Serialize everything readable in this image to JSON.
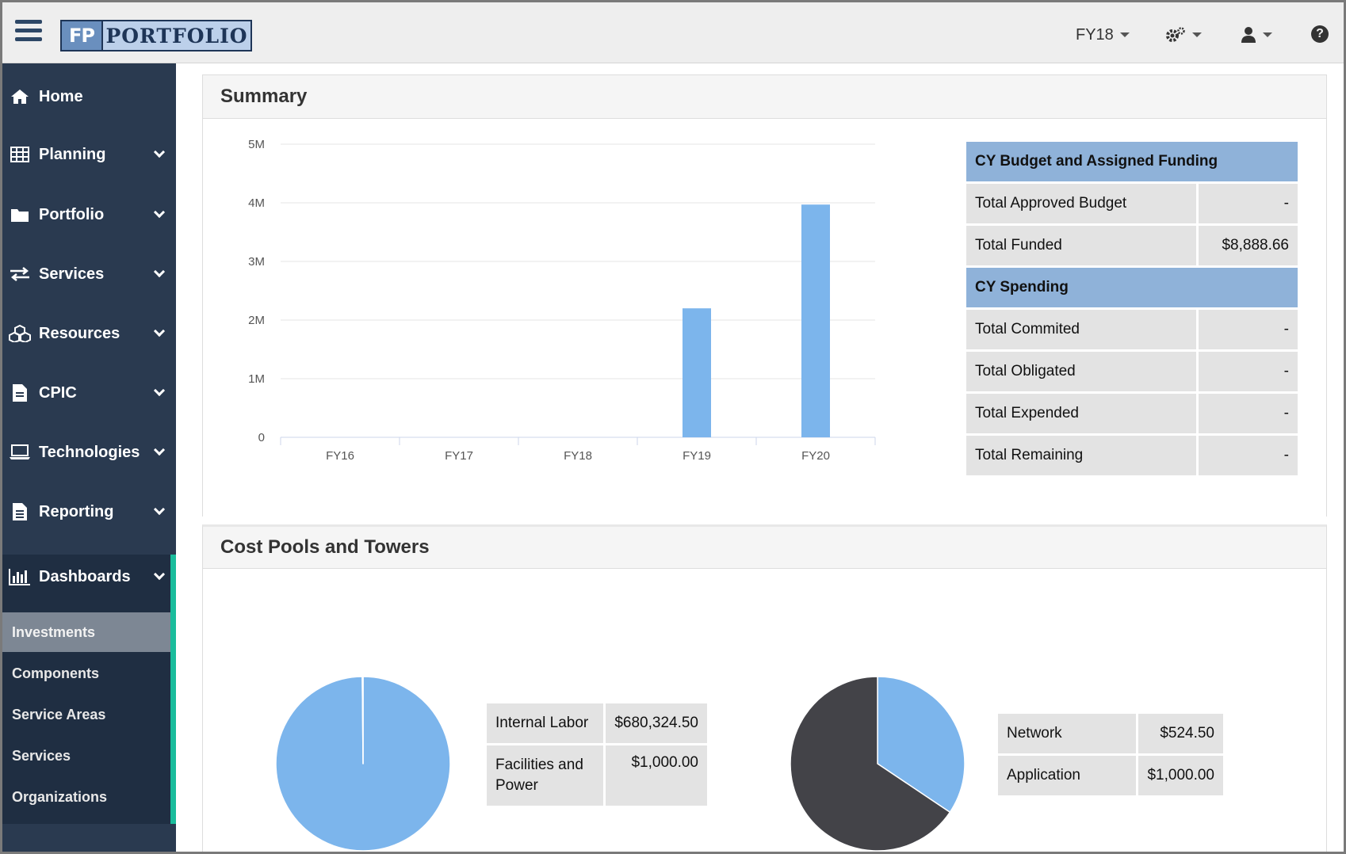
{
  "header": {
    "logo_abbrev": "FP",
    "logo_word": "PORTFOLIO",
    "fiscal_year": "FY18",
    "gear_icon": "gear-icon",
    "user_icon": "user-icon",
    "help_icon": "question-circle-icon"
  },
  "sidebar": {
    "items": [
      {
        "label": "Home",
        "icon": "home-icon"
      },
      {
        "label": "Planning",
        "icon": "table-icon"
      },
      {
        "label": "Portfolio",
        "icon": "folder-icon"
      },
      {
        "label": "Services",
        "icon": "exchange-icon"
      },
      {
        "label": "Resources",
        "icon": "cubes-icon"
      },
      {
        "label": "CPIC",
        "icon": "file-icon"
      },
      {
        "label": "Technologies",
        "icon": "laptop-icon"
      },
      {
        "label": "Reporting",
        "icon": "file-text-icon"
      },
      {
        "label": "Dashboards",
        "icon": "bar-chart-icon"
      }
    ],
    "dashboard_subitems": [
      {
        "label": "Investments",
        "active": true
      },
      {
        "label": "Components",
        "active": false
      },
      {
        "label": "Service Areas",
        "active": false
      },
      {
        "label": "Services",
        "active": false
      },
      {
        "label": "Organizations",
        "active": false
      }
    ]
  },
  "summary": {
    "title": "Summary",
    "budget_table": {
      "header": "CY Budget and Assigned Funding",
      "rows": [
        {
          "label": "Total Approved Budget",
          "value": "-"
        },
        {
          "label": "Total Funded",
          "value": "$8,888.66"
        }
      ]
    },
    "spending_table": {
      "header": "CY Spending",
      "rows": [
        {
          "label": "Total Commited",
          "value": "-"
        },
        {
          "label": "Total Obligated",
          "value": "-"
        },
        {
          "label": "Total Expended",
          "value": "-"
        },
        {
          "label": "Total Remaining",
          "value": "-"
        }
      ]
    }
  },
  "cost_pools": {
    "title": "Cost Pools and Towers",
    "pools_table": [
      {
        "label": "Internal Labor",
        "value": "$680,324.50"
      },
      {
        "label": "Facilities and Power",
        "value": "$1,000.00"
      }
    ],
    "towers_table": [
      {
        "label": "Network",
        "value": "$524.50"
      },
      {
        "label": "Application",
        "value": "$1,000.00"
      }
    ]
  },
  "chart_data": [
    {
      "type": "bar",
      "categories": [
        "FY16",
        "FY17",
        "FY18",
        "FY19",
        "FY20"
      ],
      "values": [
        0,
        0,
        0,
        2200000,
        3970000
      ],
      "yticks": [
        "0",
        "1M",
        "2M",
        "3M",
        "4M",
        "5M"
      ],
      "ylim": [
        0,
        5000000
      ],
      "grid": true,
      "color": "#7cb5ec"
    },
    {
      "type": "pie",
      "labels": [
        "Internal Labor",
        "Facilities and Power"
      ],
      "values": [
        680324.5,
        1000.0
      ],
      "colors": [
        "#7cb5ec",
        "#434348"
      ]
    },
    {
      "type": "pie",
      "labels": [
        "Network",
        "Application"
      ],
      "values": [
        524.5,
        1000.0
      ],
      "colors": [
        "#7cb5ec",
        "#434348"
      ]
    }
  ]
}
